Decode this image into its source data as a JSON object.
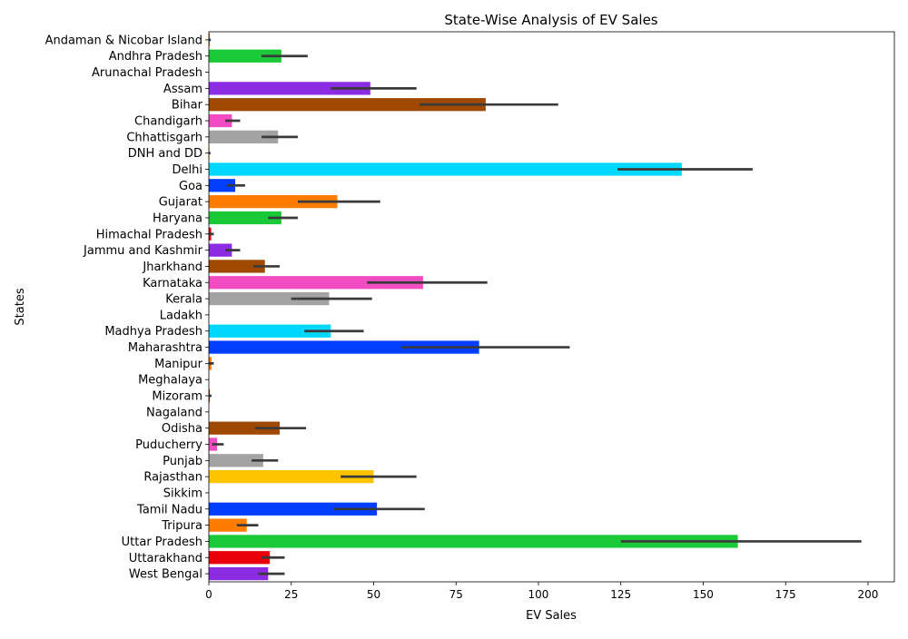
{
  "chart_data": {
    "type": "bar",
    "orientation": "horizontal",
    "title": "State-Wise Analysis of EV Sales",
    "xlabel": "EV Sales",
    "ylabel": "States",
    "xlim": [
      0,
      208
    ],
    "xticks": [
      0,
      25,
      50,
      75,
      100,
      125,
      150,
      175,
      200
    ],
    "grid": false,
    "categories": [
      "Andaman & Nicobar Island",
      "Andhra Pradesh",
      "Arunachal Pradesh",
      "Assam",
      "Bihar",
      "Chandigarh",
      "Chhattisgarh",
      "DNH and DD",
      "Delhi",
      "Goa",
      "Gujarat",
      "Haryana",
      "Himachal Pradesh",
      "Jammu and Kashmir",
      "Jharkhand",
      "Karnataka",
      "Kerala",
      "Ladakh",
      "Madhya Pradesh",
      "Maharashtra",
      "Manipur",
      "Meghalaya",
      "Mizoram",
      "Nagaland",
      "Odisha",
      "Puducherry",
      "Punjab",
      "Rajasthan",
      "Sikkim",
      "Tamil Nadu",
      "Tripura",
      "Uttar Pradesh",
      "Uttarakhand",
      "West Bengal"
    ],
    "values": [
      0.3,
      22,
      0,
      49,
      84,
      7,
      21,
      0.2,
      143.5,
      8,
      39,
      22,
      0.7,
      7,
      17,
      65,
      36.5,
      0,
      37,
      82,
      0.8,
      0,
      0.3,
      0,
      21.5,
      2.5,
      16.5,
      50,
      0,
      51,
      11.5,
      160.5,
      18.5,
      18
    ],
    "errors": [
      [
        0,
        0.6
      ],
      [
        16,
        30
      ],
      [
        0,
        0
      ],
      [
        37,
        63
      ],
      [
        64,
        106
      ],
      [
        5,
        9.5
      ],
      [
        16,
        27
      ],
      [
        0,
        0.5
      ],
      [
        124,
        165
      ],
      [
        5.5,
        11
      ],
      [
        27,
        52
      ],
      [
        18,
        27
      ],
      [
        0,
        1.5
      ],
      [
        5,
        9.5
      ],
      [
        13.5,
        21.5
      ],
      [
        48,
        84.5
      ],
      [
        25,
        49.5
      ],
      [
        0,
        0
      ],
      [
        29,
        47
      ],
      [
        58.5,
        109.5
      ],
      [
        0,
        1.5
      ],
      [
        0,
        0
      ],
      [
        0,
        0.8
      ],
      [
        0,
        0
      ],
      [
        14,
        29.5
      ],
      [
        1,
        4.5
      ],
      [
        13,
        21
      ],
      [
        40,
        63
      ],
      [
        0,
        0
      ],
      [
        38,
        65.5
      ],
      [
        8.5,
        15
      ],
      [
        125,
        198
      ],
      [
        16,
        23
      ],
      [
        15,
        23
      ]
    ],
    "colors": [
      "#023eff",
      "#ff7c00",
      "#1ac938",
      "#e8000b",
      "#8b2be2",
      "#9f4800",
      "#f14cc1",
      "#a3a3a3",
      "#ffc400",
      "#00d7ff"
    ],
    "errbar_color": "#3a3a3a"
  }
}
